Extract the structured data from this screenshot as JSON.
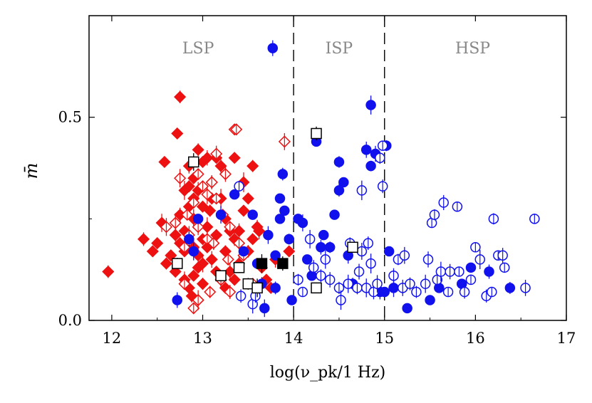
{
  "chart_data": {
    "type": "scatter",
    "title": "",
    "xlabel": "log(ν_pk/1 Hz)",
    "ylabel": "m̄",
    "xlim": [
      11.75,
      17
    ],
    "ylim": [
      0,
      0.75
    ],
    "xticks": [
      "12",
      "13",
      "14",
      "15",
      "16",
      "17"
    ],
    "yticks": [
      "0.0",
      "0.5"
    ],
    "regions": [
      {
        "label": "LSP",
        "x_center": 12.95
      },
      {
        "label": "ISP",
        "x_center": 14.5
      },
      {
        "label": "HSP",
        "x_center": 15.97
      }
    ],
    "dividers": [
      14,
      15
    ],
    "colors": {
      "red": "#ee1111",
      "blue": "#1111ee",
      "black": "#000000",
      "region_label": "#888888"
    },
    "series": [
      {
        "name": "red-filled-diamond",
        "marker": "diamond",
        "filled": true,
        "color": "#ee1111",
        "points": [
          [
            11.96,
            0.12
          ],
          [
            12.35,
            0.2
          ],
          [
            12.45,
            0.17
          ],
          [
            12.5,
            0.19
          ],
          [
            12.6,
            0.14
          ],
          [
            12.7,
            0.21
          ],
          [
            12.8,
            0.17
          ],
          [
            12.55,
            0.24
          ],
          [
            12.75,
            0.26
          ],
          [
            12.85,
            0.28
          ],
          [
            12.9,
            0.3
          ],
          [
            12.95,
            0.32
          ],
          [
            12.85,
            0.38
          ],
          [
            12.9,
            0.35
          ],
          [
            12.95,
            0.42
          ],
          [
            13.0,
            0.39
          ],
          [
            13.05,
            0.4
          ],
          [
            13.15,
            0.4
          ],
          [
            13.1,
            0.34
          ],
          [
            12.75,
            0.55
          ],
          [
            12.72,
            0.46
          ],
          [
            12.58,
            0.39
          ],
          [
            12.8,
            0.32
          ],
          [
            12.9,
            0.25
          ],
          [
            13.0,
            0.28
          ],
          [
            13.1,
            0.3
          ],
          [
            13.2,
            0.3
          ],
          [
            13.25,
            0.25
          ],
          [
            13.3,
            0.22
          ],
          [
            13.35,
            0.2
          ],
          [
            13.4,
            0.22
          ],
          [
            13.45,
            0.27
          ],
          [
            13.5,
            0.3
          ],
          [
            13.45,
            0.34
          ],
          [
            13.55,
            0.38
          ],
          [
            13.35,
            0.4
          ],
          [
            13.2,
            0.38
          ],
          [
            13.0,
            0.2
          ],
          [
            13.05,
            0.18
          ],
          [
            13.1,
            0.15
          ],
          [
            13.15,
            0.12
          ],
          [
            13.2,
            0.1
          ],
          [
            13.25,
            0.08
          ],
          [
            13.3,
            0.12
          ],
          [
            13.35,
            0.1
          ],
          [
            13.4,
            0.14
          ],
          [
            13.5,
            0.17
          ],
          [
            13.55,
            0.2
          ],
          [
            13.6,
            0.23
          ],
          [
            12.7,
            0.12
          ],
          [
            12.8,
            0.1
          ],
          [
            12.85,
            0.08
          ],
          [
            12.9,
            0.11
          ],
          [
            12.95,
            0.13
          ],
          [
            13.0,
            0.09
          ],
          [
            12.65,
            0.16
          ],
          [
            12.75,
            0.19
          ],
          [
            12.8,
            0.22
          ],
          [
            12.9,
            0.18
          ],
          [
            12.95,
            0.16
          ],
          [
            13.05,
            0.23
          ],
          [
            13.15,
            0.21
          ],
          [
            13.25,
            0.17
          ],
          [
            12.88,
            0.06
          ],
          [
            12.95,
            0.05
          ],
          [
            13.0,
            0.14
          ],
          [
            13.08,
            0.27
          ],
          [
            12.85,
            0.33
          ],
          [
            13.7,
            0.1
          ],
          [
            13.65,
            0.13
          ],
          [
            13.8,
            0.15
          ],
          [
            13.95,
            0.17
          ],
          [
            13.75,
            0.08
          ],
          [
            13.62,
            0.22
          ]
        ]
      },
      {
        "name": "red-open-diamond",
        "marker": "diamond",
        "filled": false,
        "color": "#ee1111",
        "points": [
          [
            12.6,
            0.23
          ],
          [
            12.7,
            0.24
          ],
          [
            12.8,
            0.18
          ],
          [
            12.85,
            0.21
          ],
          [
            12.95,
            0.23
          ],
          [
            13.05,
            0.2
          ],
          [
            13.12,
            0.19
          ],
          [
            13.15,
            0.3
          ],
          [
            13.22,
            0.26
          ],
          [
            13.3,
            0.23
          ],
          [
            13.35,
            0.47
          ],
          [
            13.37,
            0.47
          ],
          [
            13.25,
            0.36
          ],
          [
            13.15,
            0.41
          ],
          [
            12.95,
            0.36
          ],
          [
            13.05,
            0.31
          ],
          [
            12.9,
            0.29
          ],
          [
            13.0,
            0.33
          ],
          [
            13.1,
            0.34
          ],
          [
            12.8,
            0.09
          ],
          [
            12.9,
            0.03
          ],
          [
            12.95,
            0.05
          ],
          [
            13.08,
            0.07
          ],
          [
            13.2,
            0.1
          ],
          [
            13.3,
            0.07
          ],
          [
            13.4,
            0.19
          ],
          [
            13.55,
            0.09
          ],
          [
            13.9,
            0.44
          ],
          [
            12.75,
            0.35
          ],
          [
            12.83,
            0.26
          ],
          [
            13.28,
            0.15
          ],
          [
            13.45,
            0.16
          ]
        ]
      },
      {
        "name": "blue-filled-circle",
        "marker": "circle",
        "filled": true,
        "color": "#1111ee",
        "points": [
          [
            13.77,
            0.67
          ],
          [
            12.72,
            0.05
          ],
          [
            12.85,
            0.2
          ],
          [
            12.9,
            0.17
          ],
          [
            12.95,
            0.25
          ],
          [
            13.2,
            0.26
          ],
          [
            13.35,
            0.31
          ],
          [
            13.45,
            0.17
          ],
          [
            13.55,
            0.26
          ],
          [
            13.6,
            0.14
          ],
          [
            13.65,
            0.09
          ],
          [
            13.68,
            0.03
          ],
          [
            13.72,
            0.21
          ],
          [
            13.8,
            0.16
          ],
          [
            13.8,
            0.08
          ],
          [
            13.85,
            0.25
          ],
          [
            13.85,
            0.3
          ],
          [
            13.88,
            0.36
          ],
          [
            13.9,
            0.27
          ],
          [
            13.95,
            0.2
          ],
          [
            13.98,
            0.05
          ],
          [
            14.05,
            0.25
          ],
          [
            14.1,
            0.24
          ],
          [
            14.15,
            0.15
          ],
          [
            14.2,
            0.11
          ],
          [
            14.25,
            0.44
          ],
          [
            14.3,
            0.18
          ],
          [
            14.33,
            0.21
          ],
          [
            14.4,
            0.18
          ],
          [
            14.45,
            0.26
          ],
          [
            14.5,
            0.32
          ],
          [
            14.5,
            0.39
          ],
          [
            14.55,
            0.34
          ],
          [
            14.6,
            0.16
          ],
          [
            14.65,
            0.09
          ],
          [
            14.8,
            0.42
          ],
          [
            14.85,
            0.38
          ],
          [
            14.85,
            0.53
          ],
          [
            14.9,
            0.41
          ],
          [
            14.95,
            0.07
          ],
          [
            15.0,
            0.07
          ],
          [
            15.02,
            0.43
          ],
          [
            15.05,
            0.17
          ],
          [
            15.1,
            0.08
          ],
          [
            15.25,
            0.03
          ],
          [
            15.5,
            0.05
          ],
          [
            15.6,
            0.08
          ],
          [
            15.85,
            0.09
          ],
          [
            15.95,
            0.13
          ],
          [
            16.15,
            0.12
          ],
          [
            16.38,
            0.08
          ]
        ]
      },
      {
        "name": "blue-open-circle",
        "marker": "circle",
        "filled": false,
        "color": "#1111ee",
        "points": [
          [
            13.4,
            0.33
          ],
          [
            13.42,
            0.06
          ],
          [
            13.55,
            0.04
          ],
          [
            13.58,
            0.06
          ],
          [
            14.05,
            0.1
          ],
          [
            14.1,
            0.07
          ],
          [
            14.18,
            0.2
          ],
          [
            14.22,
            0.13
          ],
          [
            14.3,
            0.11
          ],
          [
            14.35,
            0.15
          ],
          [
            14.4,
            0.1
          ],
          [
            14.5,
            0.08
          ],
          [
            14.52,
            0.05
          ],
          [
            14.6,
            0.09
          ],
          [
            14.62,
            0.19
          ],
          [
            14.7,
            0.08
          ],
          [
            14.72,
            0.12
          ],
          [
            14.75,
            0.17
          ],
          [
            14.8,
            0.08
          ],
          [
            14.82,
            0.19
          ],
          [
            14.85,
            0.14
          ],
          [
            14.88,
            0.07
          ],
          [
            14.92,
            0.09
          ],
          [
            14.95,
            0.4
          ],
          [
            14.98,
            0.43
          ],
          [
            14.75,
            0.32
          ],
          [
            14.98,
            0.33
          ],
          [
            15.1,
            0.11
          ],
          [
            15.15,
            0.15
          ],
          [
            15.2,
            0.08
          ],
          [
            15.22,
            0.16
          ],
          [
            15.28,
            0.09
          ],
          [
            15.35,
            0.07
          ],
          [
            15.45,
            0.09
          ],
          [
            15.48,
            0.15
          ],
          [
            15.52,
            0.24
          ],
          [
            15.55,
            0.26
          ],
          [
            15.58,
            0.1
          ],
          [
            15.62,
            0.12
          ],
          [
            15.65,
            0.29
          ],
          [
            15.7,
            0.07
          ],
          [
            15.72,
            0.12
          ],
          [
            15.8,
            0.28
          ],
          [
            15.82,
            0.12
          ],
          [
            15.88,
            0.07
          ],
          [
            15.95,
            0.1
          ],
          [
            16.0,
            0.18
          ],
          [
            16.05,
            0.15
          ],
          [
            16.12,
            0.06
          ],
          [
            16.18,
            0.07
          ],
          [
            16.2,
            0.25
          ],
          [
            16.25,
            0.16
          ],
          [
            16.3,
            0.16
          ],
          [
            16.32,
            0.13
          ],
          [
            16.55,
            0.08
          ],
          [
            16.65,
            0.25
          ]
        ]
      },
      {
        "name": "black-filled-square",
        "marker": "square",
        "filled": true,
        "color": "#000000",
        "points": [
          [
            13.65,
            0.14
          ],
          [
            13.88,
            0.14
          ]
        ]
      },
      {
        "name": "black-open-square",
        "marker": "square",
        "filled": false,
        "color": "#000000",
        "points": [
          [
            12.72,
            0.14
          ],
          [
            12.9,
            0.39
          ],
          [
            13.2,
            0.11
          ],
          [
            13.4,
            0.13
          ],
          [
            13.5,
            0.09
          ],
          [
            13.6,
            0.08
          ],
          [
            14.25,
            0.46
          ],
          [
            14.25,
            0.08
          ],
          [
            14.65,
            0.18
          ]
        ]
      }
    ]
  }
}
